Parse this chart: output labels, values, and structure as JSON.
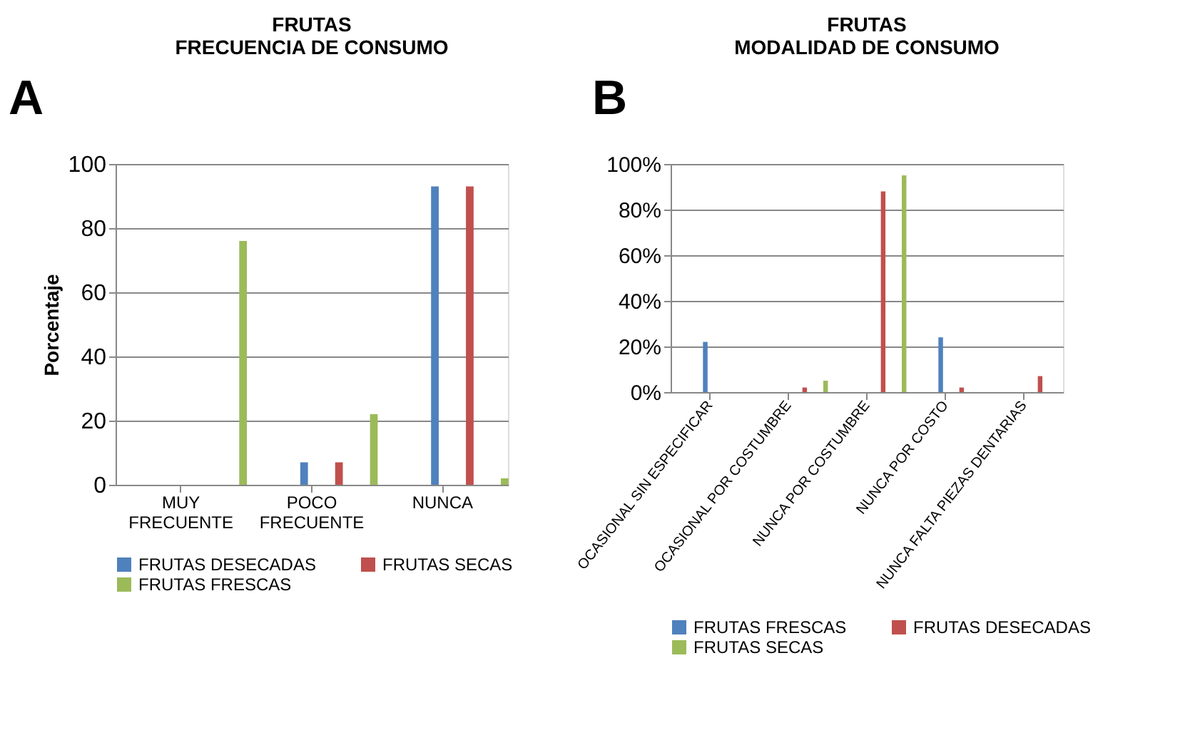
{
  "chart_data": [
    {
      "type": "bar",
      "title": "FRUTAS\nFRECUENCIA DE CONSUMO",
      "annotations": [
        "A"
      ],
      "ylabel": "Porcentaje",
      "categories": [
        "MUY FRECUENTE",
        "POCO FRECUENTE",
        "NUNCA"
      ],
      "series": [
        {
          "name": "FRUTAS DESECADAS",
          "color": "#4f81bd",
          "values": [
            null,
            7,
            93
          ]
        },
        {
          "name": "FRUTAS SECAS",
          "color": "#c0504d",
          "values": [
            null,
            7,
            93
          ]
        },
        {
          "name": "FRUTAS FRESCAS",
          "color": "#9bbb59",
          "values": [
            76,
            22,
            2
          ]
        }
      ],
      "ylim": [
        0,
        100
      ],
      "yticks": [
        0,
        20,
        40,
        60,
        80,
        100
      ],
      "grid": "y",
      "legend": "bottom"
    },
    {
      "type": "bar",
      "title": "FRUTAS\nMODALIDAD DE CONSUMO",
      "annotations": [
        "B"
      ],
      "categories": [
        "OCASIONAL SIN ESPECIFICAR",
        "OCASIONAL POR COSTUMBRE",
        "NUNCA POR COSTUMBRE",
        "NUNCA POR COSTO",
        "NUNCA FALTA PIEZAS DENTARIAS"
      ],
      "series": [
        {
          "name": "FRUTAS FRESCAS",
          "color": "#4f81bd",
          "values": [
            22,
            null,
            null,
            24,
            null
          ]
        },
        {
          "name": "FRUTAS DESECADAS",
          "color": "#c0504d",
          "values": [
            null,
            2,
            88,
            2,
            7
          ]
        },
        {
          "name": "FRUTAS SECAS",
          "color": "#9bbb59",
          "values": [
            null,
            5,
            95,
            null,
            null
          ]
        }
      ],
      "ylim": [
        0,
        100
      ],
      "yticks": [
        {
          "value": 0,
          "label": "0%"
        },
        {
          "value": 20,
          "label": "20%"
        },
        {
          "value": 40,
          "label": "40%"
        },
        {
          "value": 60,
          "label": "60%"
        },
        {
          "value": 80,
          "label": "80%"
        },
        {
          "value": 100,
          "label": "100%"
        }
      ],
      "grid": "y",
      "legend": "bottom"
    }
  ]
}
